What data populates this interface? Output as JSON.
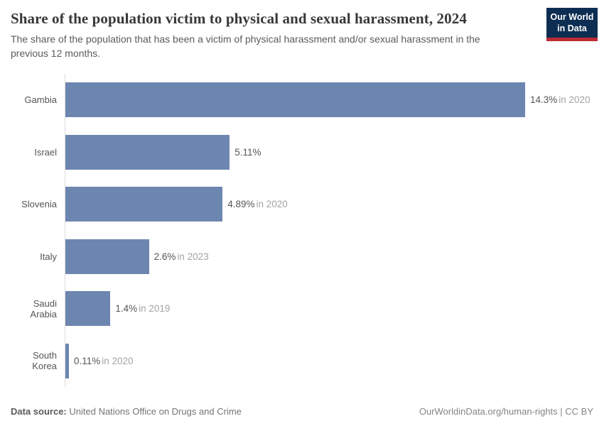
{
  "header": {
    "title": "Share of the population victim to physical and sexual harassment, 2024",
    "subtitle": "The share of the population that has been a victim of physical harassment and/or sexual harassment in the previous 12 months.",
    "logo": {
      "line1": "Our World",
      "line2": "in Data"
    }
  },
  "chart_data": {
    "type": "bar",
    "orientation": "horizontal",
    "categories": [
      "Gambia",
      "Israel",
      "Slovenia",
      "Italy",
      "Saudi Arabia",
      "South Korea"
    ],
    "values": [
      14.3,
      5.11,
      4.89,
      2.6,
      1.4,
      0.11
    ],
    "value_labels": [
      "14.3%",
      "5.11%",
      "4.89%",
      "2.6%",
      "1.4%",
      "0.11%"
    ],
    "year_labels": [
      "in 2020",
      "",
      "in 2020",
      "in 2023",
      "in 2019",
      "in 2020"
    ],
    "xlim": [
      0,
      14.3
    ],
    "bar_color": "#6d86b0",
    "grid": false,
    "legend": false,
    "title": "Share of the population victim to physical and sexual harassment, 2024",
    "xlabel": "",
    "ylabel": ""
  },
  "footer": {
    "source_label": "Data source:",
    "source_value": "United Nations Office on Drugs and Crime",
    "link": "OurWorldinData.org/human-rights | CC BY"
  },
  "colors": {
    "bar": "#6d86b0",
    "logo_navy": "#0d2e52",
    "logo_red": "#bf2b36",
    "axis": "#dcdcdc",
    "value_text": "#565656",
    "year_text": "#a3a3a3"
  }
}
